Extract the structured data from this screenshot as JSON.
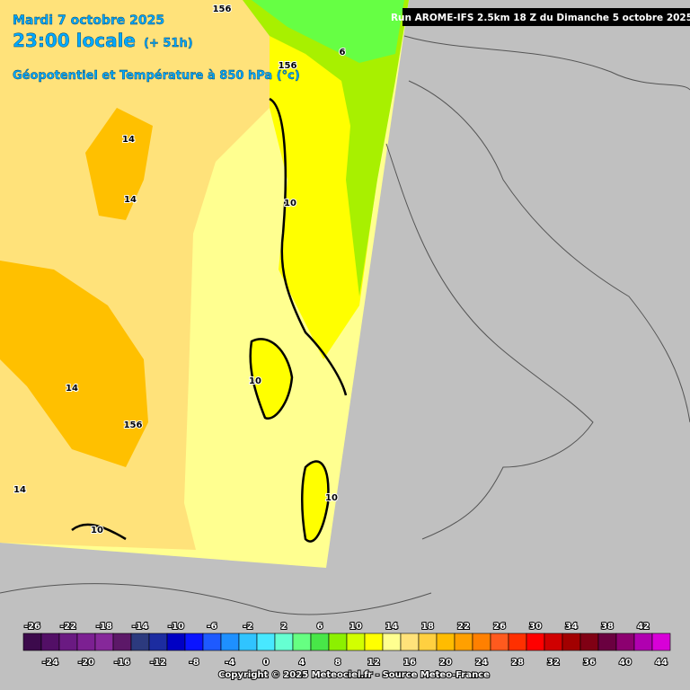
{
  "header": {
    "date": "Mardi 7 octobre 2025",
    "time": "23:00 locale",
    "lead": "(+ 51h)",
    "field": "Géopotentiel et Température à 850 hPa (°c)"
  },
  "run": "Run AROME-IFS 2.5km 18 Z du Dimanche 5 octobre 2025",
  "map_labels": [
    "156",
    "6",
    "156",
    "14",
    "14",
    "10",
    "10",
    "14",
    "156",
    "14",
    "10",
    "10"
  ],
  "legend": {
    "values": [
      -26,
      -24,
      -22,
      -20,
      -18,
      -16,
      -14,
      -12,
      -10,
      -8,
      -6,
      -4,
      -2,
      0,
      2,
      4,
      6,
      8,
      10,
      12,
      14,
      16,
      18,
      20,
      22,
      24,
      26,
      28,
      30,
      32,
      34,
      36,
      38,
      40,
      42,
      44
    ],
    "colors": [
      "#3c0a4c",
      "#520f66",
      "#6a1a82",
      "#7c2092",
      "#86289a",
      "#5c1868",
      "#2c3a7e",
      "#1c2ca0",
      "#0000c4",
      "#0a14ff",
      "#1e5aff",
      "#1e90ff",
      "#30c4ff",
      "#48e8ff",
      "#66ffd2",
      "#66ff82",
      "#48e648",
      "#8cf000",
      "#d2ff00",
      "#ffff00",
      "#ffff90",
      "#ffe27a",
      "#ffd040",
      "#ffbc00",
      "#ffa000",
      "#ff8000",
      "#ff5a1e",
      "#ff3000",
      "#ff0000",
      "#d00000",
      "#a20000",
      "#800014",
      "#6a0040",
      "#8c0070",
      "#b000b0",
      "#d800d8",
      "#ff40ff",
      "#ff90ff"
    ]
  },
  "copyright": "Copyright © 2025 Meteociel.fr - Source Meteo-France"
}
